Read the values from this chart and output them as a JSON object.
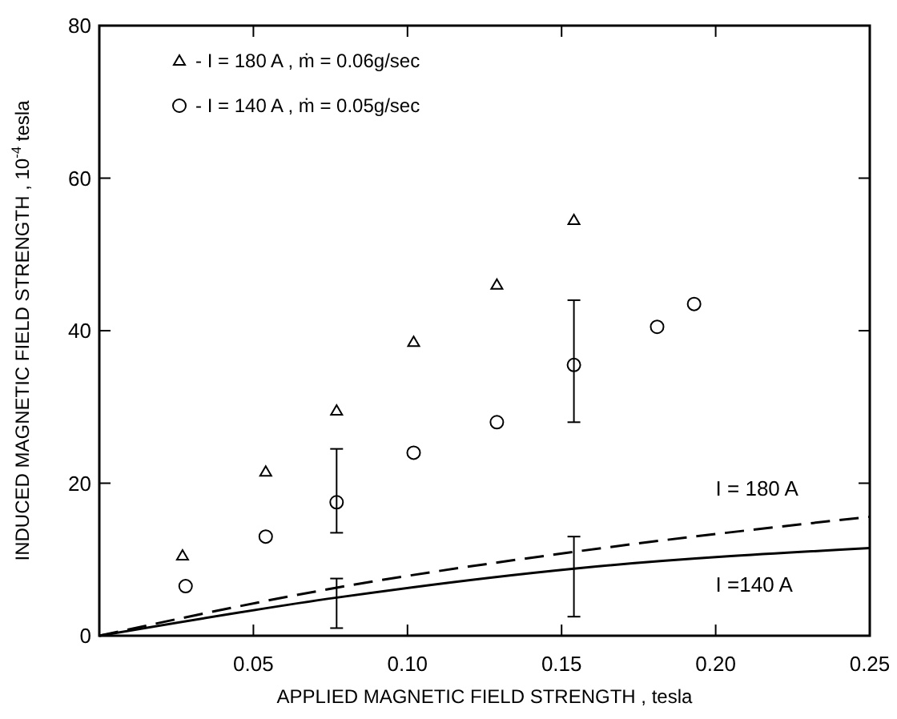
{
  "chart_data": {
    "type": "scatter",
    "xlabel": "APPLIED MAGNETIC FIELD STRENGTH , tesla",
    "ylabel": "INDUCED MAGNETIC FIELD STRENGTH , 10$^{-4}$ tesla",
    "xlim": [
      0,
      0.25
    ],
    "ylim": [
      0,
      80
    ],
    "xticks": [
      {
        "value": 0.05,
        "label": "0.05"
      },
      {
        "value": 0.1,
        "label": "0.10"
      },
      {
        "value": 0.15,
        "label": "0.15"
      },
      {
        "value": 0.2,
        "label": "0.20"
      },
      {
        "value": 0.25,
        "label": "0.25"
      }
    ],
    "yticks": [
      0,
      20,
      40,
      60,
      80
    ],
    "grid": false,
    "legend": "top left",
    "series": [
      {
        "name": "- I = 180 A , ṁ = 0.06g/sec",
        "color": "#000000",
        "marker": "triangle",
        "x": [
          0.027,
          0.054,
          0.077,
          0.102,
          0.129,
          0.154
        ],
        "values": [
          10.5,
          21.5,
          29.5,
          38.5,
          46,
          54.5
        ]
      },
      {
        "name": "- I = 140 A , ṁ = 0.05g/sec",
        "color": "#000000",
        "marker": "circle",
        "x": [
          0.028,
          0.054,
          0.077,
          0.102,
          0.129,
          0.154,
          0.181,
          0.193
        ],
        "values": [
          6.5,
          13,
          17.5,
          24,
          28,
          35.5,
          40.5,
          43.5
        ],
        "errors": [
          null,
          null,
          [
            13.5,
            24.5
          ],
          null,
          null,
          [
            28,
            44
          ],
          null,
          null
        ]
      },
      {
        "type": "line",
        "color": "#000000",
        "marker": "none",
        "line_style": "dashed",
        "x": [
          0,
          0.077,
          0.154,
          0.25
        ],
        "values": [
          0,
          6.3,
          11,
          15.6
        ]
      },
      {
        "type": "line",
        "color": "#000000",
        "marker": "none",
        "line_style": "solid",
        "x": [
          0,
          0.077,
          0.154,
          0.25
        ],
        "values": [
          0,
          5,
          8.8,
          11.5
        ],
        "errors": [
          null,
          [
            1,
            7.5
          ],
          [
            2.5,
            13
          ],
          null
        ]
      }
    ],
    "annotations": [
      "I = 180 A",
      "I =140 A"
    ]
  }
}
